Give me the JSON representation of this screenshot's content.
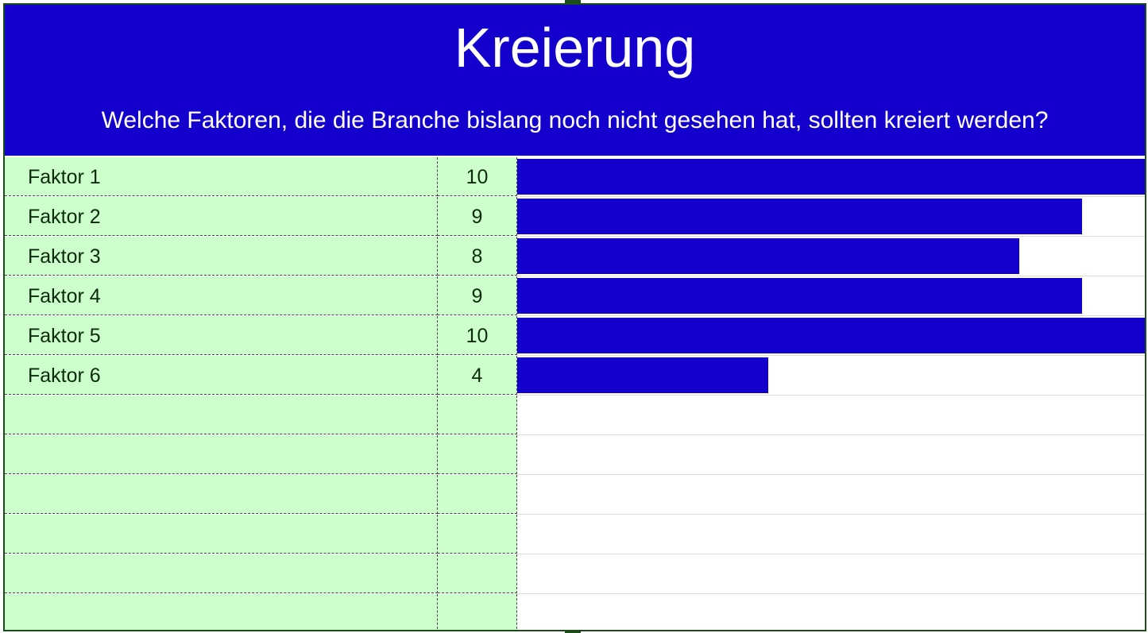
{
  "header": {
    "title": "Kreierung",
    "subtitle": "Welche Faktoren, die die Branche bislang noch nicht gesehen hat, sollten kreiert werden?"
  },
  "colors": {
    "bar": "#1400cc",
    "header_bg": "#1400cc",
    "table_bg": "#ccffcc"
  },
  "total_rows": 12,
  "chart_data": {
    "type": "bar",
    "orientation": "horizontal",
    "categories": [
      "Faktor 1",
      "Faktor 2",
      "Faktor 3",
      "Faktor 4",
      "Faktor 5",
      "Faktor 6"
    ],
    "values": [
      10,
      9,
      8,
      9,
      10,
      4
    ],
    "xlim": [
      0,
      10
    ],
    "title": "Kreierung",
    "xlabel": "",
    "ylabel": ""
  }
}
